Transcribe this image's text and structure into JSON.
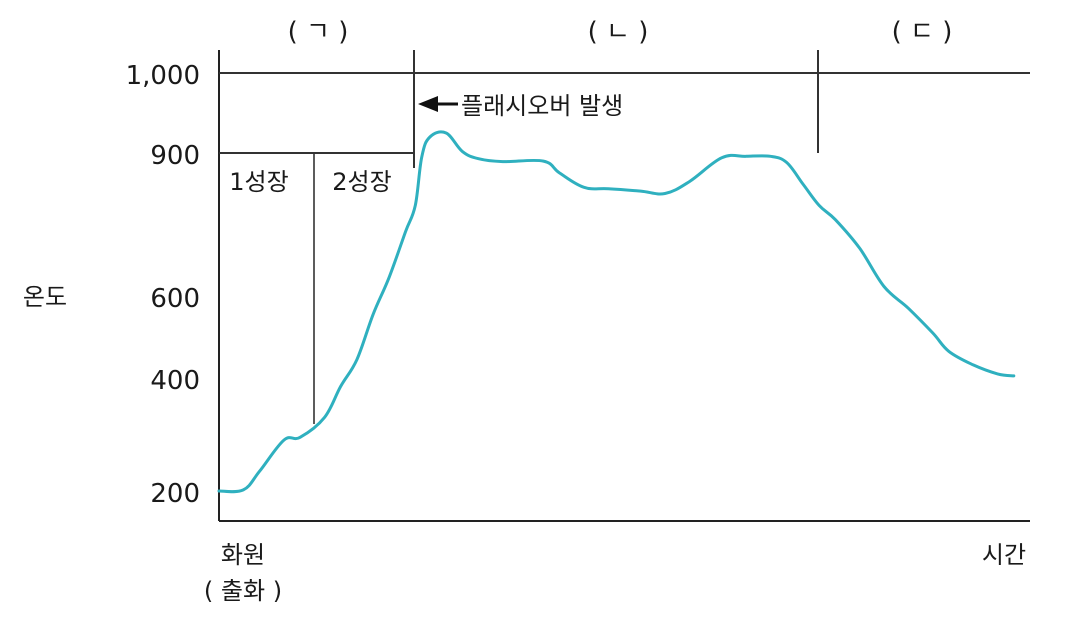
{
  "chart_data": {
    "type": "line",
    "ylabel": "온도",
    "xlabel_start": "화원",
    "xlabel_start_sub": "( 출화 )",
    "xlabel_end": "시간",
    "ytick_labels": [
      "1,000",
      "900",
      "600",
      "400",
      "200"
    ],
    "yticks": [
      1000,
      900,
      600,
      400,
      200
    ],
    "phase_labels": [
      "( ㄱ )",
      "( ㄴ )",
      "( ㄷ )"
    ],
    "stage_labels": [
      "1성장",
      "2성장"
    ],
    "annotation": "플래시오버 발생",
    "line_color": "#2fb0bf",
    "series": [
      {
        "x": [
          0,
          3,
          5,
          8,
          10,
          13,
          15,
          17,
          19,
          21,
          23,
          24.2,
          25,
          26,
          28,
          30,
          32,
          35,
          40,
          42,
          45,
          48,
          52,
          55,
          58,
          62,
          65,
          68,
          70,
          72,
          74,
          76,
          79,
          82,
          85,
          88,
          90,
          93,
          96,
          98
        ],
        "y": [
          200,
          202,
          235,
          290,
          295,
          330,
          385,
          445,
          555,
          640,
          735,
          790,
          892,
          920,
          925,
          902,
          888,
          882,
          883,
          858,
          828,
          825,
          820,
          815,
          840,
          890,
          893,
          893,
          880,
          835,
          790,
          760,
          700,
          620,
          570,
          510,
          465,
          432,
          410,
          405
        ]
      }
    ]
  }
}
